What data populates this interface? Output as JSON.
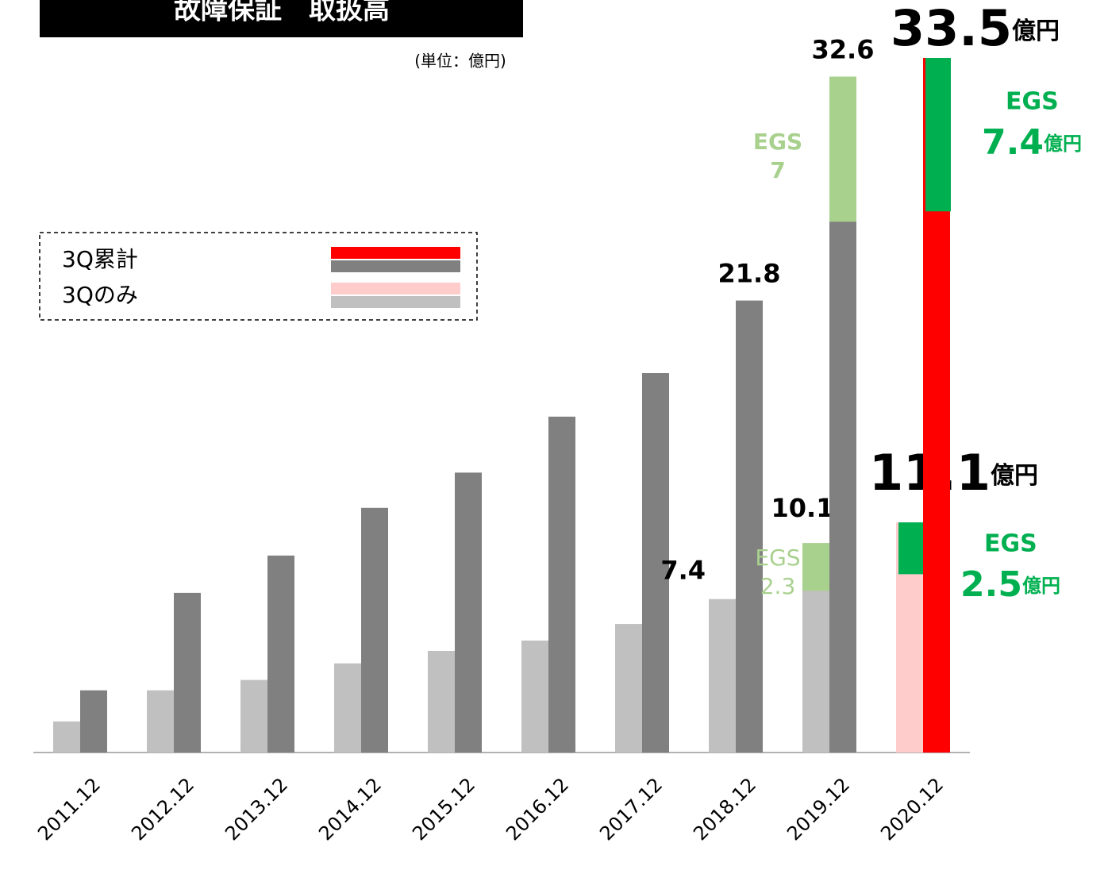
{
  "chart_data": {
    "type": "bar",
    "title": "故障保証　取扱高",
    "unit_note": "(単位：億円)",
    "unit_label": "億円",
    "categories": [
      "2011.12",
      "2012.12",
      "2013.12",
      "2014.12",
      "2015.12",
      "2016.12",
      "2017.12",
      "2018.12",
      "2019.12",
      "2020.12"
    ],
    "series": [
      {
        "name": "3Qのみ",
        "color": "#c0c0c0",
        "highlight_color": "#ffcccc",
        "values": [
          1.5,
          3.0,
          3.5,
          4.3,
          4.9,
          5.4,
          6.2,
          7.4,
          10.1,
          11.1
        ],
        "value_labels": [
          null,
          null,
          null,
          null,
          null,
          null,
          null,
          "7.4",
          "10.1",
          "11.1"
        ],
        "egs": [
          null,
          null,
          null,
          null,
          null,
          null,
          null,
          null,
          2.3,
          2.5
        ]
      },
      {
        "name": "3Q累計",
        "color": "#808080",
        "highlight_color": "#ff0000",
        "values": [
          3.0,
          7.7,
          9.5,
          11.8,
          13.5,
          16.2,
          18.3,
          21.8,
          32.6,
          33.5
        ],
        "value_labels": [
          null,
          null,
          null,
          null,
          null,
          null,
          null,
          "21.8",
          "32.6",
          "33.5"
        ],
        "egs": [
          null,
          null,
          null,
          null,
          null,
          null,
          null,
          null,
          7.0,
          7.4
        ]
      }
    ],
    "egs_label": "EGS",
    "egs_color": "#a9d18e",
    "egs_highlight_color": "#00b050",
    "ylim": [
      0,
      33.5
    ]
  }
}
